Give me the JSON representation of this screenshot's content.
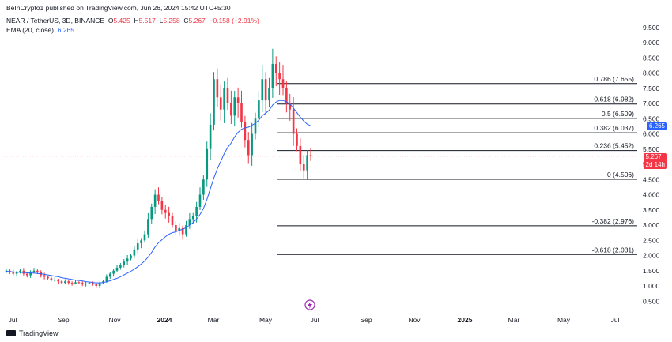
{
  "header": {
    "published": "BeInCrypto1 published on TradingView.com, Jun 26, 2024 15:42 UTC+5:30",
    "symbol": "NEAR / TetherUS, 3D, BINANCE",
    "o_label": "O",
    "o_value": "5.425",
    "h_label": "H",
    "h_value": "5.517",
    "l_label": "L",
    "l_value": "5.258",
    "c_label": "C",
    "c_value": "5.267",
    "change": "−0.158 (−2.91%)",
    "ema_label": "EMA (20, close)",
    "ema_value": "6.265"
  },
  "price_tags": {
    "ema": "6.265",
    "last": "5.267",
    "countdown": "2d 14h"
  },
  "footer": {
    "brand": "TradingView"
  },
  "colors": {
    "up": "#089981",
    "down": "#f23645",
    "ema": "#2962ff",
    "fib": "#131722"
  },
  "chart_data": {
    "type": "candlestick",
    "y_ticks": [
      "9.500",
      "9.000",
      "8.500",
      "8.000",
      "7.500",
      "7.000",
      "6.500",
      "6.000",
      "5.500",
      "5.000",
      "4.500",
      "4.000",
      "3.500",
      "3.000",
      "2.500",
      "2.000",
      "1.500",
      "1.000",
      "0.500"
    ],
    "ylim": [
      0.3,
      9.8
    ],
    "x_ticks": [
      "Jul",
      "Sep",
      "Nov",
      "2024",
      "Mar",
      "May",
      "Jul",
      "Sep",
      "Nov",
      "2025",
      "Mar",
      "May",
      "Jul"
    ],
    "fib_levels": [
      {
        "label": "0.786 (7.655)",
        "value": 7.655
      },
      {
        "label": "0.618 (6.982)",
        "value": 6.982
      },
      {
        "label": "0.5 (6.509)",
        "value": 6.509
      },
      {
        "label": "0.382 (6.037)",
        "value": 6.037
      },
      {
        "label": "0.236 (5.452)",
        "value": 5.452
      },
      {
        "label": "0 (4.506)",
        "value": 4.506
      },
      {
        "label": "-0.382 (2.976)",
        "value": 2.976
      },
      {
        "label": "-0.618 (2.031)",
        "value": 2.031
      }
    ],
    "last_price": 5.267,
    "ema_last": 6.265,
    "closes": [
      1.5,
      1.45,
      1.4,
      1.45,
      1.5,
      1.4,
      1.35,
      1.45,
      1.5,
      1.45,
      1.35,
      1.3,
      1.25,
      1.2,
      1.2,
      1.15,
      1.1,
      1.15,
      1.1,
      1.08,
      1.12,
      1.1,
      1.05,
      1.08,
      1.1,
      1.05,
      1.0,
      1.1,
      1.15,
      1.3,
      1.4,
      1.5,
      1.6,
      1.7,
      1.8,
      1.9,
      2.0,
      2.2,
      2.4,
      2.5,
      2.7,
      3.2,
      3.6,
      4.0,
      3.8,
      3.5,
      3.4,
      3.3,
      3.0,
      2.8,
      2.9,
      2.7,
      3.0,
      3.2,
      3.3,
      3.6,
      4.0,
      4.5,
      5.5,
      6.3,
      7.8,
      7.2,
      6.8,
      7.5,
      7.0,
      6.6,
      7.2,
      7.0,
      6.4,
      5.8,
      5.3,
      6.0,
      6.5,
      7.1,
      7.8,
      7.1,
      7.5,
      8.3,
      8.0,
      7.8,
      7.5,
      7.0,
      6.8,
      6.0,
      5.6,
      5.0,
      4.8,
      5.3,
      5.267
    ],
    "ema": [
      1.48,
      1.47,
      1.46,
      1.45,
      1.45,
      1.44,
      1.43,
      1.42,
      1.42,
      1.41,
      1.4,
      1.38,
      1.36,
      1.34,
      1.32,
      1.3,
      1.27,
      1.25,
      1.23,
      1.21,
      1.19,
      1.18,
      1.16,
      1.14,
      1.13,
      1.11,
      1.1,
      1.1,
      1.11,
      1.14,
      1.17,
      1.21,
      1.25,
      1.3,
      1.36,
      1.42,
      1.48,
      1.55,
      1.63,
      1.72,
      1.82,
      1.95,
      2.1,
      2.28,
      2.42,
      2.52,
      2.62,
      2.7,
      2.75,
      2.78,
      2.83,
      2.86,
      2.92,
      3.0,
      3.08,
      3.2,
      3.35,
      3.55,
      3.85,
      4.2,
      4.55,
      4.85,
      5.1,
      5.35,
      5.55,
      5.7,
      5.9,
      6.05,
      6.15,
      6.2,
      6.22,
      6.28,
      6.35,
      6.45,
      6.6,
      6.68,
      6.78,
      6.95,
      7.05,
      7.1,
      7.1,
      7.05,
      6.98,
      6.85,
      6.7,
      6.55,
      6.42,
      6.32,
      6.265
    ]
  }
}
